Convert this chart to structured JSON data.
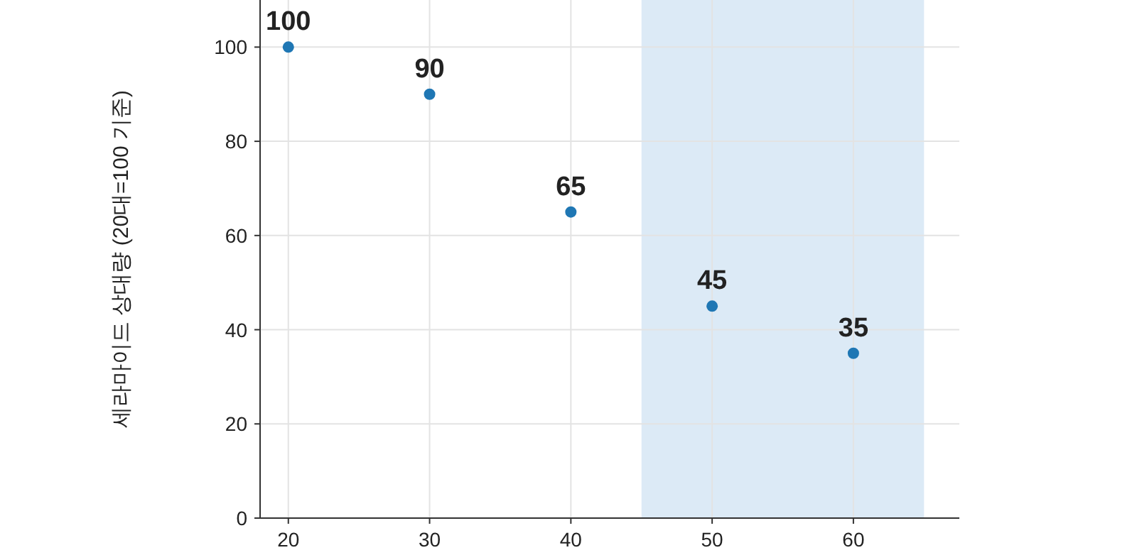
{
  "chart_data": {
    "type": "scatter",
    "ylabel": "세라마이드 상대량 (20대=100 기준)",
    "x": [
      20,
      30,
      40,
      50,
      60
    ],
    "values": [
      100,
      90,
      65,
      45,
      35
    ],
    "color": "#1f77b4",
    "data_labels": true,
    "marker": "circle",
    "xlim": [
      18,
      67.5
    ],
    "ylim": [
      0,
      110
    ],
    "xticks": [
      20,
      30,
      40,
      50,
      60
    ],
    "yticks": [
      0,
      20,
      40,
      60,
      80,
      100
    ],
    "grid": true,
    "bands": [
      {
        "axis": "x",
        "from": 45,
        "to": 65,
        "color": "#dceaf6"
      }
    ]
  }
}
